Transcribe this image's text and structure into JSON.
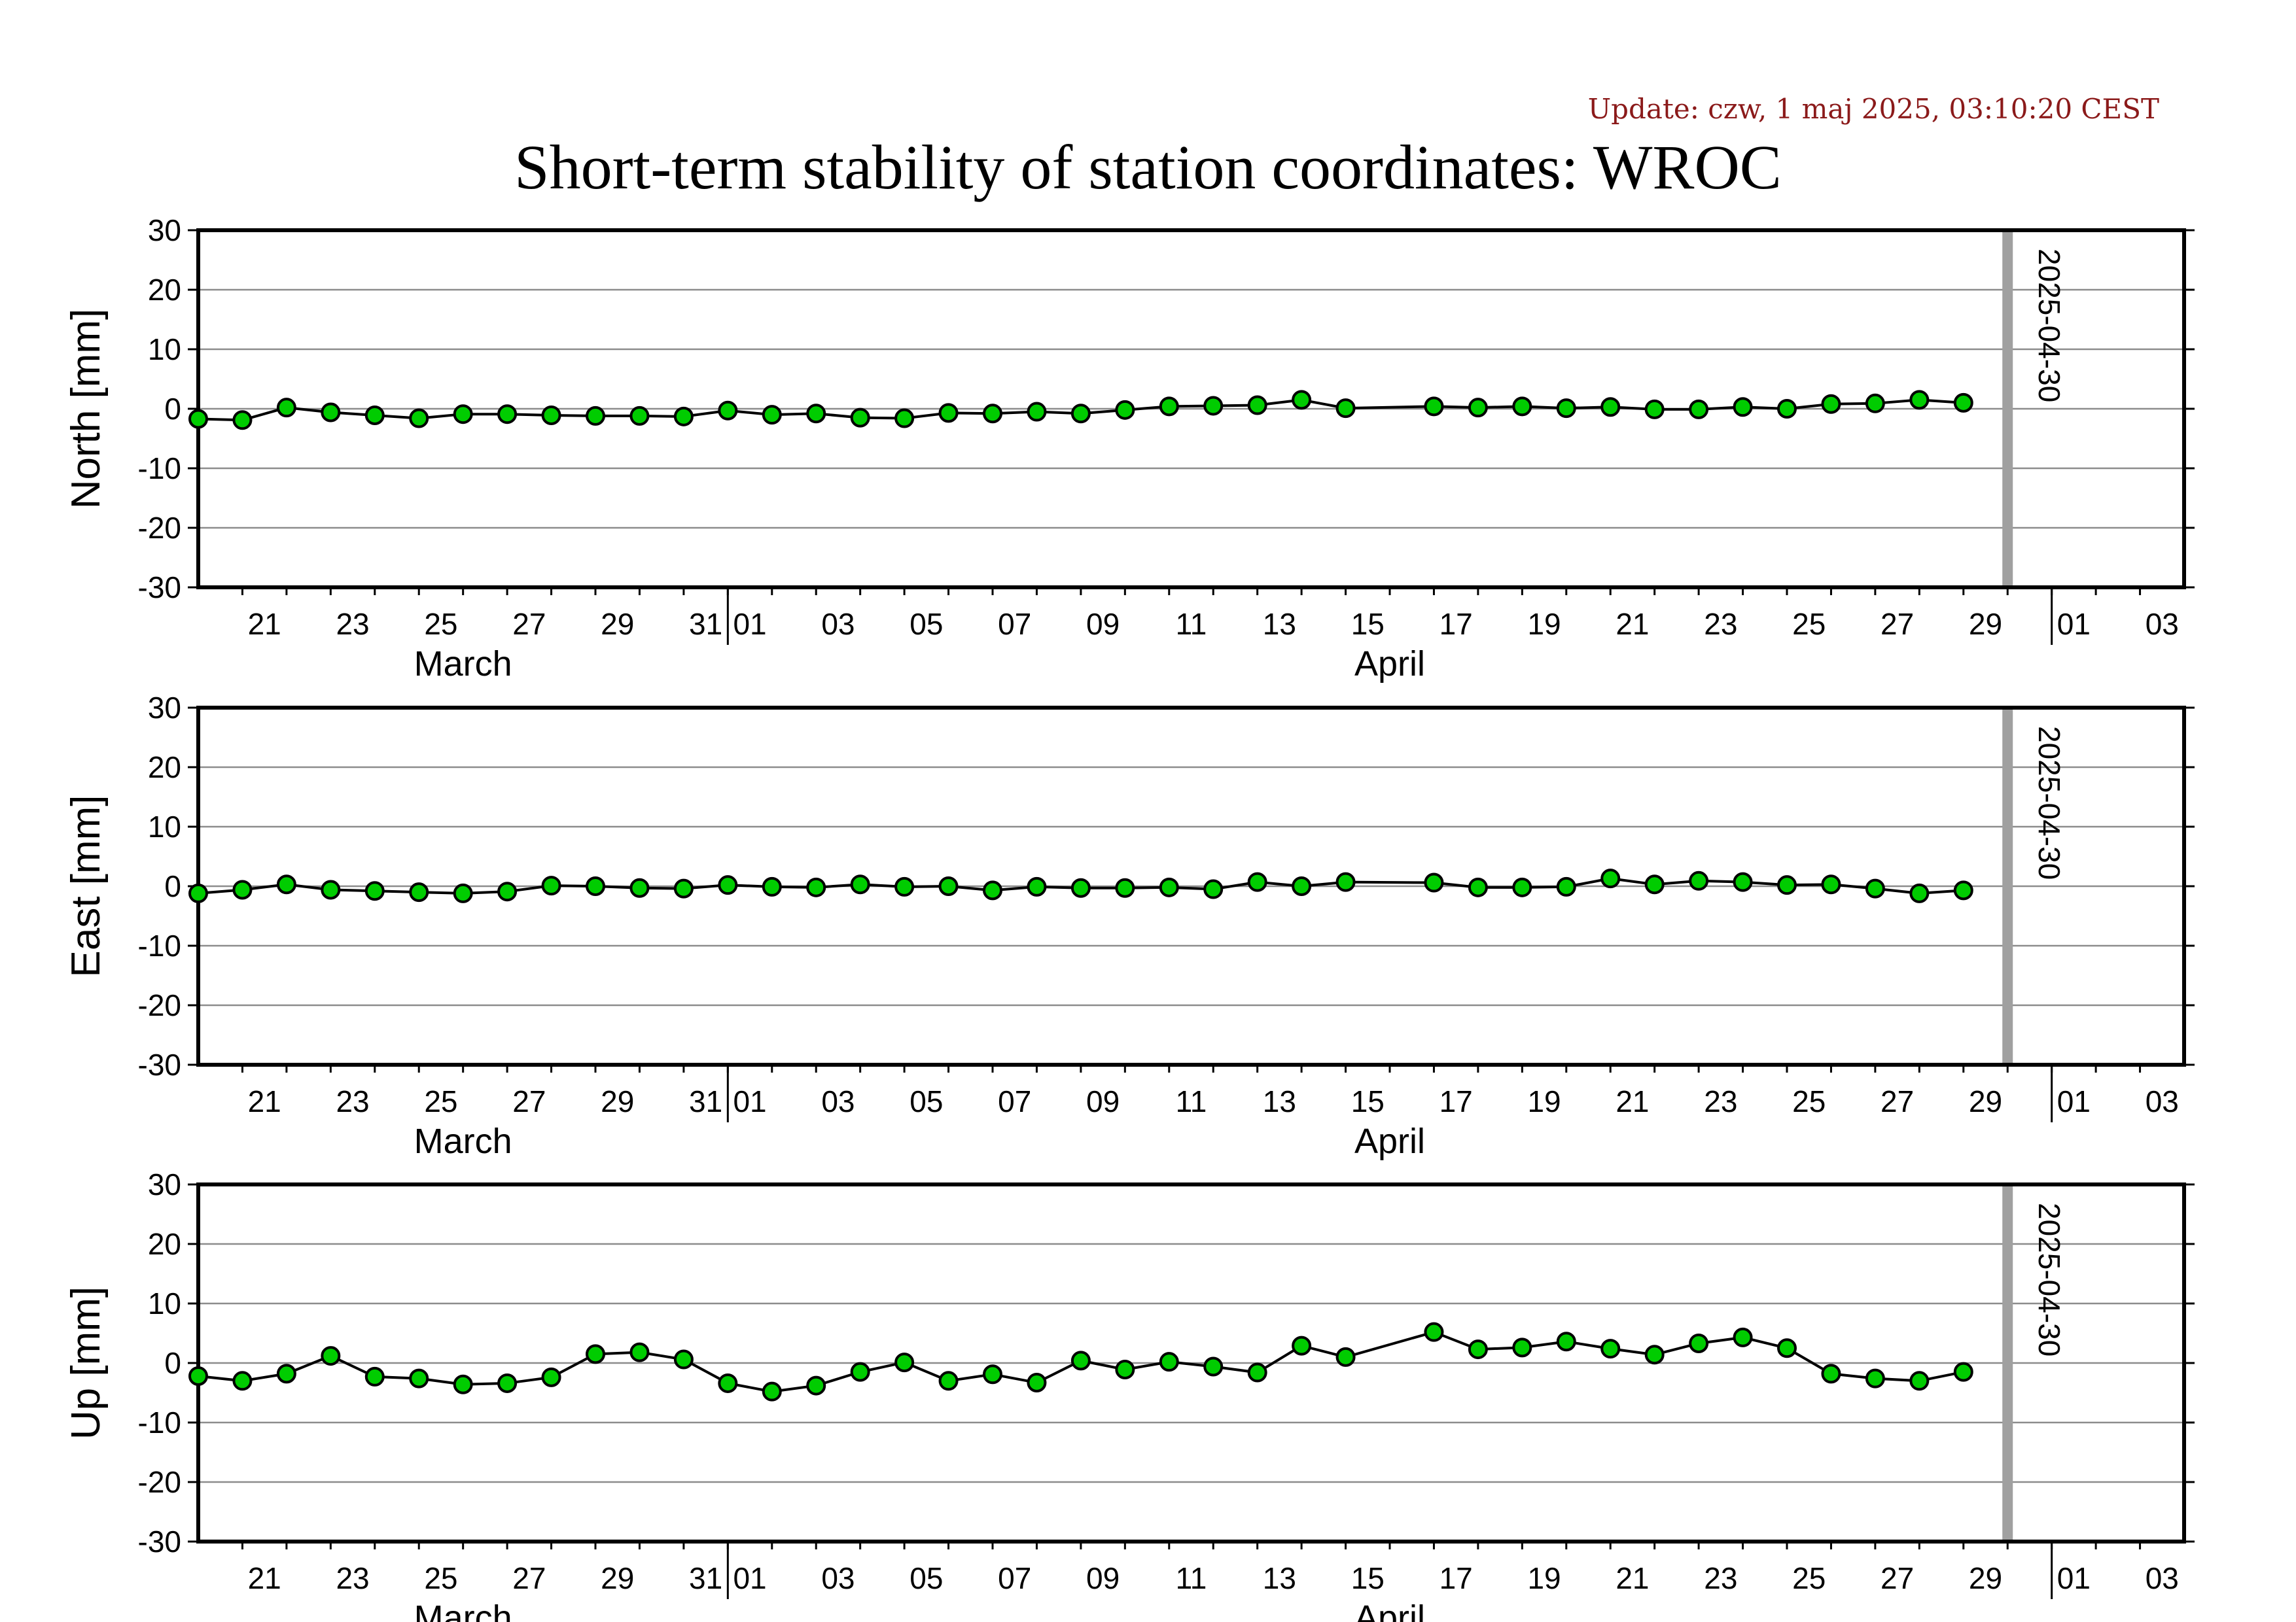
{
  "update_text": "Update: czw, 1 maj 2025, 03:10:20 CEST",
  "title": "Short-term stability of station coordinates: WROC",
  "chart_data": {
    "type": "line",
    "x_start_date": "2025-03-20",
    "x_range_days": [
      0,
      45
    ],
    "x_tick_labels": [
      "21",
      "23",
      "25",
      "27",
      "29",
      "31",
      "01",
      "03",
      "05",
      "07",
      "09",
      "11",
      "13",
      "15",
      "17",
      "19",
      "21",
      "23",
      "25",
      "27",
      "29",
      "01",
      "03"
    ],
    "month_labels": [
      "March",
      "April"
    ],
    "ylim": [
      -30,
      30
    ],
    "yticks": [
      -30,
      -20,
      -10,
      0,
      10,
      20,
      30
    ],
    "grid": true,
    "marker_label": "2025-04-30",
    "marker_color": "#a0a0a0",
    "point_color": "#00cc00",
    "panels": [
      {
        "ylabel": "North [mm]",
        "x": [
          0,
          1,
          2,
          3,
          4,
          5,
          6,
          7,
          8,
          9,
          10,
          11,
          12,
          13,
          14,
          15,
          16,
          17,
          18,
          19,
          20,
          21,
          22,
          23,
          24,
          25,
          26,
          28,
          29,
          30,
          31,
          32,
          33,
          34,
          35,
          36,
          37,
          38,
          39,
          40
        ],
        "y": [
          -1.7,
          -1.9,
          0.2,
          -0.6,
          -1.1,
          -1.6,
          -0.9,
          -0.9,
          -1.1,
          -1.2,
          -1.2,
          -1.3,
          -0.3,
          -1.0,
          -0.8,
          -1.5,
          -1.6,
          -0.7,
          -0.8,
          -0.5,
          -0.8,
          -0.2,
          0.4,
          0.5,
          0.6,
          1.5,
          0.1,
          0.4,
          0.2,
          0.4,
          0.1,
          0.3,
          -0.1,
          -0.1,
          0.3,
          0.0,
          0.8,
          0.9,
          1.5,
          1.0
        ]
      },
      {
        "ylabel": "East [mm]",
        "x": [
          0,
          1,
          2,
          3,
          4,
          5,
          6,
          7,
          8,
          9,
          10,
          11,
          12,
          13,
          14,
          15,
          16,
          17,
          18,
          19,
          20,
          21,
          22,
          23,
          24,
          25,
          26,
          28,
          29,
          30,
          31,
          32,
          33,
          34,
          35,
          36,
          37,
          38,
          39,
          40
        ],
        "y": [
          -1.2,
          -0.6,
          0.3,
          -0.6,
          -0.8,
          -1.0,
          -1.2,
          -0.9,
          0.1,
          0.0,
          -0.3,
          -0.4,
          0.2,
          -0.1,
          -0.2,
          0.3,
          -0.1,
          0.0,
          -0.7,
          -0.1,
          -0.3,
          -0.3,
          -0.2,
          -0.5,
          0.7,
          0.0,
          0.7,
          0.6,
          -0.2,
          -0.2,
          -0.1,
          1.3,
          0.3,
          0.9,
          0.7,
          0.2,
          0.3,
          -0.4,
          -1.2,
          -0.7
        ]
      },
      {
        "ylabel": "Up [mm]",
        "x": [
          0,
          1,
          2,
          3,
          4,
          5,
          6,
          7,
          8,
          9,
          10,
          11,
          12,
          13,
          14,
          15,
          16,
          17,
          18,
          19,
          20,
          21,
          22,
          23,
          24,
          25,
          26,
          28,
          29,
          30,
          31,
          32,
          33,
          34,
          35,
          36,
          37,
          38,
          39,
          40
        ],
        "y": [
          -2.2,
          -3.0,
          -1.8,
          1.2,
          -2.3,
          -2.6,
          -3.6,
          -3.4,
          -2.4,
          1.5,
          1.8,
          0.6,
          -3.4,
          -4.8,
          -3.8,
          -1.5,
          0.1,
          -3.0,
          -1.9,
          -3.3,
          0.4,
          -1.1,
          0.2,
          -0.6,
          -1.6,
          2.9,
          1.0,
          5.2,
          2.3,
          2.6,
          3.6,
          2.4,
          1.4,
          3.3,
          4.3,
          2.5,
          -1.8,
          -2.6,
          -3.0,
          -1.5
        ]
      }
    ]
  }
}
